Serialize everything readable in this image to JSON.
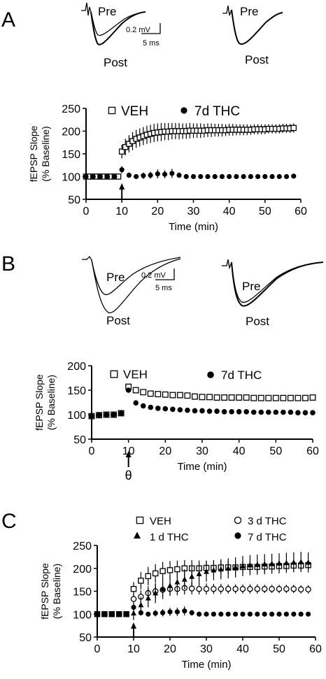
{
  "panel_labels": [
    "A",
    "B",
    "C"
  ],
  "traces": {
    "pre": "Pre",
    "post": "Post",
    "scale_mv": "0.2 mV",
    "scale_ms": "5 ms"
  },
  "stim_symbol": "θ",
  "chart_data": [
    {
      "type": "scatter",
      "panel": "A",
      "xlabel": "Time (min)",
      "ylabel": [
        "fEPSP Slope",
        "(% Baseline)"
      ],
      "xlim": [
        0,
        60
      ],
      "ylim": [
        50,
        250
      ],
      "xticks": [
        0,
        10,
        20,
        30,
        40,
        50,
        60
      ],
      "yticks": [
        50,
        100,
        150,
        200,
        250
      ],
      "stimulus_time": 10,
      "legend_position": "top",
      "series": [
        {
          "name": "VEH",
          "marker": "open-square",
          "x": [
            0,
            1,
            2,
            3,
            4,
            5,
            6,
            7,
            8,
            9,
            10,
            11,
            12,
            13,
            14,
            15,
            16,
            17,
            18,
            19,
            20,
            21,
            22,
            23,
            24,
            25,
            26,
            27,
            28,
            29,
            30,
            31,
            32,
            33,
            34,
            35,
            36,
            37,
            38,
            39,
            40,
            41,
            42,
            43,
            44,
            45,
            46,
            47,
            48,
            49,
            50,
            51,
            52,
            53,
            54,
            55,
            56,
            57,
            58
          ],
          "y": [
            100,
            100,
            100,
            100,
            100,
            100,
            100,
            100,
            100,
            100,
            155,
            165,
            172,
            178,
            183,
            186,
            189,
            192,
            194,
            196,
            197,
            198,
            199,
            199,
            200,
            200,
            200,
            200,
            200,
            201,
            201,
            201,
            201,
            201,
            202,
            202,
            202,
            202,
            202,
            202,
            203,
            203,
            203,
            203,
            203,
            203,
            203,
            204,
            204,
            204,
            204,
            205,
            205,
            205,
            205,
            206,
            206,
            206,
            207
          ],
          "err": [
            5,
            5,
            5,
            5,
            5,
            5,
            5,
            5,
            5,
            5,
            15,
            18,
            19,
            20,
            20,
            20,
            20,
            20,
            20,
            20,
            20,
            20,
            19,
            19,
            18,
            18,
            18,
            17,
            17,
            17,
            16,
            16,
            16,
            15,
            15,
            15,
            14,
            14,
            14,
            13,
            13,
            13,
            12,
            12,
            12,
            12,
            11,
            11,
            11,
            11,
            11,
            10,
            10,
            10,
            10,
            10,
            10,
            10,
            10
          ]
        },
        {
          "name": "7d THC",
          "marker": "filled-circle",
          "x": [
            0,
            2,
            4,
            6,
            8,
            10,
            12,
            14,
            16,
            18,
            20,
            22,
            24,
            26,
            28,
            30,
            32,
            34,
            36,
            38,
            40,
            42,
            44,
            46,
            48,
            50,
            52,
            54,
            56,
            58
          ],
          "y": [
            100,
            100,
            100,
            100,
            100,
            115,
            103,
            100,
            102,
            103,
            106,
            105,
            107,
            103,
            100,
            100,
            100,
            100,
            100,
            100,
            100,
            100,
            100,
            100,
            100,
            100,
            100,
            100,
            100,
            101
          ],
          "err": [
            3,
            3,
            3,
            3,
            3,
            8,
            6,
            5,
            7,
            8,
            10,
            9,
            10,
            6,
            4,
            3,
            3,
            3,
            3,
            3,
            3,
            3,
            3,
            3,
            3,
            3,
            3,
            3,
            3,
            3
          ]
        }
      ]
    },
    {
      "type": "scatter",
      "panel": "B",
      "xlabel": "Time (min)",
      "ylabel": [
        "fEPSP Slope",
        "(% Baseline)"
      ],
      "xlim": [
        0,
        60
      ],
      "ylim": [
        50,
        200
      ],
      "xticks": [
        0,
        10,
        20,
        30,
        40,
        50,
        60
      ],
      "yticks": [
        50,
        100,
        150,
        200
      ],
      "stimulus_time": 10,
      "legend_position": "top",
      "series": [
        {
          "name": "VEH",
          "marker": "open-square",
          "x": [
            0,
            2,
            4,
            6,
            8,
            10,
            12,
            14,
            16,
            18,
            20,
            22,
            24,
            26,
            28,
            30,
            32,
            34,
            36,
            38,
            40,
            42,
            44,
            46,
            48,
            50,
            52,
            54,
            56,
            58,
            60
          ],
          "y": [
            97,
            99,
            100,
            100,
            103,
            157,
            150,
            146,
            143,
            142,
            141,
            140,
            140,
            139,
            137,
            136,
            136,
            135,
            135,
            135,
            135,
            135,
            134,
            134,
            134,
            134,
            134,
            134,
            134,
            134,
            135
          ],
          "err": [
            0,
            0,
            0,
            0,
            0,
            0,
            0,
            0,
            0,
            0,
            0,
            0,
            0,
            0,
            0,
            0,
            0,
            0,
            0,
            0,
            0,
            0,
            0,
            0,
            0,
            0,
            0,
            0,
            0,
            0,
            0
          ]
        },
        {
          "name": "7d THC",
          "marker": "filled-circle",
          "x": [
            0,
            2,
            4,
            6,
            8,
            10,
            12,
            14,
            16,
            18,
            20,
            22,
            24,
            26,
            28,
            30,
            32,
            34,
            36,
            38,
            40,
            42,
            44,
            46,
            48,
            50,
            52,
            54,
            56,
            58,
            60
          ],
          "y": [
            97,
            99,
            100,
            100,
            103,
            150,
            124,
            118,
            115,
            113,
            112,
            111,
            110,
            109,
            108,
            108,
            107,
            107,
            106,
            106,
            106,
            106,
            105,
            105,
            105,
            105,
            105,
            105,
            104,
            104,
            104
          ],
          "err": [
            0,
            0,
            0,
            0,
            0,
            0,
            0,
            0,
            0,
            0,
            0,
            0,
            0,
            0,
            0,
            0,
            0,
            0,
            0,
            0,
            0,
            0,
            0,
            0,
            0,
            0,
            0,
            0,
            0,
            0,
            0
          ]
        }
      ]
    },
    {
      "type": "scatter",
      "panel": "C",
      "xlabel": "Time (min)",
      "ylabel": [
        "fEPSP Slope",
        "(% Baseline)"
      ],
      "xlim": [
        0,
        60
      ],
      "ylim": [
        50,
        250
      ],
      "xticks": [
        0,
        10,
        20,
        30,
        40,
        50,
        60
      ],
      "yticks": [
        50,
        100,
        150,
        200,
        250
      ],
      "stimulus_time": 10,
      "legend_position": "top",
      "series": [
        {
          "name": "VEH",
          "marker": "open-square",
          "x": [
            0,
            2,
            4,
            6,
            8,
            10,
            12,
            14,
            16,
            18,
            20,
            22,
            24,
            26,
            28,
            30,
            32,
            34,
            36,
            38,
            40,
            42,
            44,
            46,
            48,
            50,
            52,
            54,
            56,
            58
          ],
          "y": [
            100,
            100,
            100,
            100,
            100,
            155,
            173,
            183,
            189,
            194,
            196,
            198,
            200,
            200,
            200,
            201,
            201,
            202,
            202,
            202,
            203,
            203,
            203,
            204,
            204,
            205,
            205,
            206,
            206,
            207
          ],
          "err": [
            4,
            4,
            4,
            4,
            4,
            15,
            19,
            20,
            20,
            20,
            20,
            19,
            18,
            18,
            17,
            16,
            16,
            15,
            14,
            14,
            13,
            13,
            12,
            12,
            11,
            11,
            11,
            10,
            10,
            10
          ]
        },
        {
          "name": "3 d THC",
          "marker": "open-circle",
          "x": [
            0,
            2,
            4,
            6,
            8,
            10,
            12,
            14,
            16,
            18,
            20,
            22,
            24,
            26,
            28,
            30,
            32,
            34,
            36,
            38,
            40,
            42,
            44,
            46,
            48,
            50,
            52,
            54,
            56,
            58
          ],
          "y": [
            100,
            100,
            100,
            100,
            100,
            133,
            138,
            146,
            150,
            153,
            155,
            155,
            157,
            156,
            155,
            155,
            155,
            155,
            155,
            155,
            155,
            155,
            155,
            155,
            155,
            155,
            155,
            155,
            154,
            154
          ],
          "err": [
            4,
            4,
            4,
            4,
            4,
            12,
            14,
            15,
            15,
            15,
            14,
            14,
            14,
            13,
            12,
            12,
            11,
            11,
            10,
            10,
            10,
            10,
            10,
            9,
            9,
            9,
            9,
            9,
            9,
            9
          ]
        },
        {
          "name": "1 d THC",
          "marker": "filled-triangle",
          "x": [
            0,
            2,
            4,
            6,
            8,
            10,
            12,
            14,
            16,
            18,
            20,
            22,
            24,
            26,
            28,
            30,
            32,
            34,
            36,
            38,
            40,
            42,
            44,
            46,
            48,
            50,
            52,
            54,
            56,
            58
          ],
          "y": [
            100,
            100,
            100,
            100,
            100,
            102,
            120,
            135,
            146,
            155,
            162,
            170,
            176,
            182,
            188,
            193,
            196,
            198,
            200,
            202,
            205,
            207,
            208,
            209,
            210,
            211,
            212,
            213,
            214,
            213
          ],
          "err": [
            4,
            4,
            4,
            4,
            4,
            15,
            18,
            20,
            22,
            22,
            22,
            22,
            22,
            22,
            22,
            22,
            22,
            22,
            22,
            22,
            22,
            22,
            22,
            22,
            22,
            22,
            22,
            22,
            22,
            22
          ]
        },
        {
          "name": "7 d THC",
          "marker": "filled-circle",
          "x": [
            0,
            2,
            4,
            6,
            8,
            10,
            12,
            14,
            16,
            18,
            20,
            22,
            24,
            26,
            28,
            30,
            32,
            34,
            36,
            38,
            40,
            42,
            44,
            46,
            48,
            50,
            52,
            54,
            56,
            58
          ],
          "y": [
            100,
            100,
            100,
            100,
            100,
            115,
            103,
            100,
            102,
            103,
            105,
            105,
            107,
            103,
            100,
            100,
            100,
            100,
            100,
            100,
            100,
            100,
            100,
            100,
            100,
            100,
            100,
            100,
            100,
            100
          ],
          "err": [
            3,
            3,
            3,
            3,
            3,
            8,
            6,
            5,
            7,
            8,
            9,
            9,
            10,
            6,
            4,
            3,
            3,
            3,
            3,
            3,
            3,
            3,
            3,
            3,
            3,
            3,
            3,
            3,
            3,
            3
          ]
        }
      ]
    }
  ]
}
